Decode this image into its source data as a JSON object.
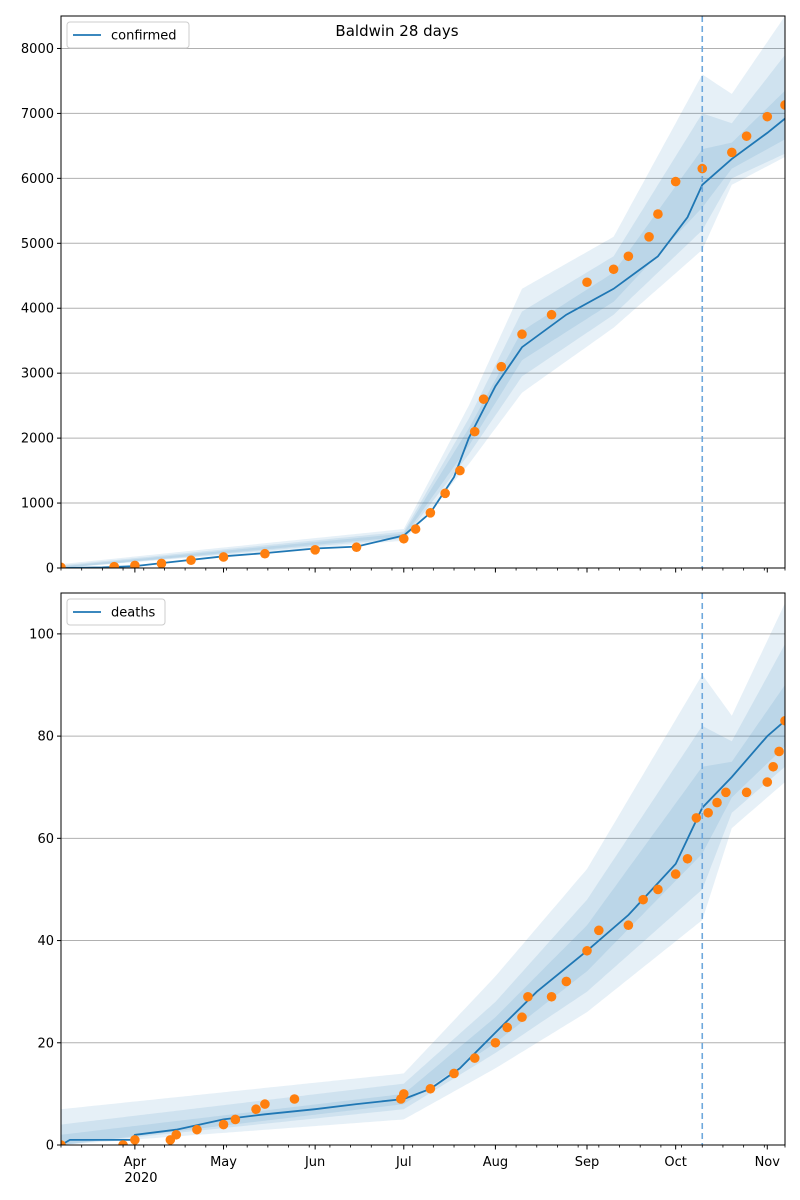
{
  "title": "Baldwin 28 days",
  "colors": {
    "model_line": "#1f77b4",
    "band": "#1f77b4",
    "observed": "#ff7f0e",
    "forecast_start": "#6fa8dc",
    "grid": "#b0b0b0"
  },
  "x_axis": {
    "month_labels": [
      "Apr",
      "May",
      "Jun",
      "Jul",
      "Aug",
      "Sep",
      "Oct",
      "Nov"
    ],
    "year_label": "2020",
    "start_date": "2020-03-07",
    "end_date": "2020-11-07",
    "forecast_start": "2020-10-10"
  },
  "chart_data": [
    {
      "type": "line",
      "legend": "confirmed",
      "legend_position": "upper-left",
      "ylim": [
        0,
        8500
      ],
      "yticks": [
        0,
        1000,
        2000,
        3000,
        4000,
        5000,
        6000,
        7000,
        8000
      ],
      "grid": "y",
      "model": {
        "name": "confirmed",
        "points": [
          [
            "2020-03-07",
            0
          ],
          [
            "2020-03-21",
            10
          ],
          [
            "2020-04-01",
            30
          ],
          [
            "2020-04-15",
            100
          ],
          [
            "2020-05-01",
            180
          ],
          [
            "2020-05-15",
            230
          ],
          [
            "2020-06-01",
            300
          ],
          [
            "2020-06-15",
            330
          ],
          [
            "2020-07-01",
            500
          ],
          [
            "2020-07-10",
            850
          ],
          [
            "2020-07-18",
            1400
          ],
          [
            "2020-07-23",
            2000
          ],
          [
            "2020-08-01",
            2800
          ],
          [
            "2020-08-10",
            3400
          ],
          [
            "2020-08-25",
            3900
          ],
          [
            "2020-09-10",
            4300
          ],
          [
            "2020-09-25",
            4800
          ],
          [
            "2020-10-05",
            5400
          ],
          [
            "2020-10-10",
            5900
          ],
          [
            "2020-10-20",
            6300
          ],
          [
            "2020-11-01",
            6700
          ],
          [
            "2020-11-07",
            6920
          ]
        ]
      },
      "bands": [
        {
          "level": "outer",
          "lower": [
            [
              "2020-03-07",
              0
            ],
            [
              "2020-07-01",
              420
            ],
            [
              "2020-07-23",
              1600
            ],
            [
              "2020-08-10",
              2700
            ],
            [
              "2020-09-10",
              3700
            ],
            [
              "2020-10-10",
              4900
            ],
            [
              "2020-10-20",
              5900
            ],
            [
              "2020-11-07",
              6330
            ]
          ],
          "upper": [
            [
              "2020-03-07",
              60
            ],
            [
              "2020-07-01",
              600
            ],
            [
              "2020-07-23",
              2500
            ],
            [
              "2020-08-10",
              4300
            ],
            [
              "2020-09-10",
              5100
            ],
            [
              "2020-10-10",
              7600
            ],
            [
              "2020-10-20",
              7300
            ],
            [
              "2020-11-07",
              8500
            ]
          ]
        },
        {
          "level": "middle",
          "lower": [
            [
              "2020-03-07",
              0
            ],
            [
              "2020-07-01",
              450
            ],
            [
              "2020-07-23",
              1750
            ],
            [
              "2020-08-10",
              2950
            ],
            [
              "2020-09-10",
              3900
            ],
            [
              "2020-10-10",
              5200
            ],
            [
              "2020-10-20",
              6000
            ],
            [
              "2020-11-07",
              6380
            ]
          ],
          "upper": [
            [
              "2020-03-07",
              40
            ],
            [
              "2020-07-01",
              560
            ],
            [
              "2020-07-23",
              2300
            ],
            [
              "2020-08-10",
              3950
            ],
            [
              "2020-09-10",
              4800
            ],
            [
              "2020-10-10",
              7000
            ],
            [
              "2020-10-20",
              6850
            ],
            [
              "2020-11-07",
              7900
            ]
          ]
        },
        {
          "level": "inner",
          "lower": [
            [
              "2020-03-07",
              0
            ],
            [
              "2020-07-01",
              480
            ],
            [
              "2020-07-23",
              1880
            ],
            [
              "2020-08-10",
              3200
            ],
            [
              "2020-09-10",
              4100
            ],
            [
              "2020-10-10",
              5550
            ],
            [
              "2020-10-20",
              6150
            ],
            [
              "2020-11-07",
              6600
            ]
          ],
          "upper": [
            [
              "2020-03-07",
              25
            ],
            [
              "2020-07-01",
              530
            ],
            [
              "2020-07-23",
              2150
            ],
            [
              "2020-08-10",
              3650
            ],
            [
              "2020-09-10",
              4550
            ],
            [
              "2020-10-10",
              6450
            ],
            [
              "2020-10-20",
              6550
            ],
            [
              "2020-11-07",
              7350
            ]
          ]
        }
      ],
      "observed": [
        [
          "2020-03-07",
          10
        ],
        [
          "2020-03-25",
          20
        ],
        [
          "2020-04-01",
          40
        ],
        [
          "2020-04-10",
          70
        ],
        [
          "2020-04-20",
          120
        ],
        [
          "2020-05-01",
          170
        ],
        [
          "2020-05-15",
          220
        ],
        [
          "2020-06-01",
          280
        ],
        [
          "2020-06-15",
          320
        ],
        [
          "2020-07-01",
          450
        ],
        [
          "2020-07-05",
          600
        ],
        [
          "2020-07-10",
          850
        ],
        [
          "2020-07-15",
          1150
        ],
        [
          "2020-07-20",
          1500
        ],
        [
          "2020-07-25",
          2100
        ],
        [
          "2020-07-28",
          2600
        ],
        [
          "2020-08-03",
          3100
        ],
        [
          "2020-08-10",
          3600
        ],
        [
          "2020-08-20",
          3900
        ],
        [
          "2020-09-01",
          4400
        ],
        [
          "2020-09-10",
          4600
        ],
        [
          "2020-09-15",
          4800
        ],
        [
          "2020-09-22",
          5100
        ],
        [
          "2020-09-25",
          5450
        ],
        [
          "2020-10-01",
          5950
        ],
        [
          "2020-10-10",
          6150
        ],
        [
          "2020-10-20",
          6400
        ],
        [
          "2020-10-25",
          6650
        ],
        [
          "2020-11-01",
          6950
        ],
        [
          "2020-11-07",
          7130
        ]
      ]
    },
    {
      "type": "line",
      "legend": "deaths",
      "legend_position": "upper-left",
      "ylim": [
        0,
        108
      ],
      "yticks": [
        0,
        20,
        40,
        60,
        80,
        100
      ],
      "grid": "y",
      "model": {
        "name": "deaths",
        "points": [
          [
            "2020-03-07",
            0
          ],
          [
            "2020-03-10",
            1
          ],
          [
            "2020-03-31",
            1
          ],
          [
            "2020-04-01",
            2
          ],
          [
            "2020-04-15",
            3
          ],
          [
            "2020-05-01",
            5
          ],
          [
            "2020-05-15",
            6
          ],
          [
            "2020-06-01",
            7
          ],
          [
            "2020-06-15",
            8
          ],
          [
            "2020-07-01",
            9
          ],
          [
            "2020-07-10",
            11
          ],
          [
            "2020-07-20",
            15
          ],
          [
            "2020-08-01",
            22
          ],
          [
            "2020-08-15",
            30
          ],
          [
            "2020-09-01",
            38
          ],
          [
            "2020-09-15",
            45
          ],
          [
            "2020-10-01",
            55
          ],
          [
            "2020-10-10",
            66
          ],
          [
            "2020-10-20",
            72
          ],
          [
            "2020-11-01",
            80
          ],
          [
            "2020-11-07",
            83
          ]
        ]
      },
      "bands": [
        {
          "level": "outer",
          "lower": [
            [
              "2020-03-07",
              0
            ],
            [
              "2020-07-01",
              5
            ],
            [
              "2020-08-01",
              15
            ],
            [
              "2020-09-01",
              26
            ],
            [
              "2020-10-10",
              44
            ],
            [
              "2020-10-20",
              62
            ],
            [
              "2020-11-07",
              71
            ]
          ],
          "upper": [
            [
              "2020-03-07",
              7
            ],
            [
              "2020-07-01",
              14
            ],
            [
              "2020-08-01",
              33
            ],
            [
              "2020-09-01",
              54
            ],
            [
              "2020-10-10",
              92
            ],
            [
              "2020-10-20",
              84
            ],
            [
              "2020-11-07",
              106
            ]
          ]
        },
        {
          "level": "middle",
          "lower": [
            [
              "2020-03-07",
              0
            ],
            [
              "2020-07-01",
              7
            ],
            [
              "2020-08-01",
              18
            ],
            [
              "2020-09-01",
              30
            ],
            [
              "2020-10-10",
              50
            ],
            [
              "2020-10-20",
              65
            ],
            [
              "2020-11-07",
              74
            ]
          ],
          "upper": [
            [
              "2020-03-07",
              4
            ],
            [
              "2020-07-01",
              12
            ],
            [
              "2020-08-01",
              28
            ],
            [
              "2020-09-01",
              48
            ],
            [
              "2020-10-10",
              82
            ],
            [
              "2020-10-20",
              79
            ],
            [
              "2020-11-07",
              98
            ]
          ]
        },
        {
          "level": "inner",
          "lower": [
            [
              "2020-03-07",
              0
            ],
            [
              "2020-07-01",
              8
            ],
            [
              "2020-08-01",
              20
            ],
            [
              "2020-09-01",
              34
            ],
            [
              "2020-10-10",
              57
            ],
            [
              "2020-10-20",
              68
            ],
            [
              "2020-11-07",
              78
            ]
          ],
          "upper": [
            [
              "2020-03-07",
              2
            ],
            [
              "2020-07-01",
              10
            ],
            [
              "2020-08-01",
              25
            ],
            [
              "2020-09-01",
              43
            ],
            [
              "2020-10-10",
              74
            ],
            [
              "2020-10-20",
              75
            ],
            [
              "2020-11-07",
              90
            ]
          ]
        }
      ],
      "observed": [
        [
          "2020-03-07",
          0
        ],
        [
          "2020-03-28",
          0
        ],
        [
          "2020-04-01",
          1
        ],
        [
          "2020-04-13",
          1
        ],
        [
          "2020-04-15",
          2
        ],
        [
          "2020-04-22",
          3
        ],
        [
          "2020-05-01",
          4
        ],
        [
          "2020-05-05",
          5
        ],
        [
          "2020-05-12",
          7
        ],
        [
          "2020-05-15",
          8
        ],
        [
          "2020-05-25",
          9
        ],
        [
          "2020-06-30",
          9
        ],
        [
          "2020-07-01",
          10
        ],
        [
          "2020-07-10",
          11
        ],
        [
          "2020-07-18",
          14
        ],
        [
          "2020-07-25",
          17
        ],
        [
          "2020-08-01",
          20
        ],
        [
          "2020-08-05",
          23
        ],
        [
          "2020-08-10",
          25
        ],
        [
          "2020-08-12",
          29
        ],
        [
          "2020-08-20",
          29
        ],
        [
          "2020-08-25",
          32
        ],
        [
          "2020-09-01",
          38
        ],
        [
          "2020-09-05",
          42
        ],
        [
          "2020-09-15",
          43
        ],
        [
          "2020-09-20",
          48
        ],
        [
          "2020-09-25",
          50
        ],
        [
          "2020-10-01",
          53
        ],
        [
          "2020-10-05",
          56
        ],
        [
          "2020-10-08",
          64
        ],
        [
          "2020-10-12",
          65
        ],
        [
          "2020-10-15",
          67
        ],
        [
          "2020-10-18",
          69
        ],
        [
          "2020-10-25",
          69
        ],
        [
          "2020-11-01",
          71
        ],
        [
          "2020-11-03",
          74
        ],
        [
          "2020-11-05",
          77
        ],
        [
          "2020-11-07",
          83
        ]
      ]
    }
  ]
}
